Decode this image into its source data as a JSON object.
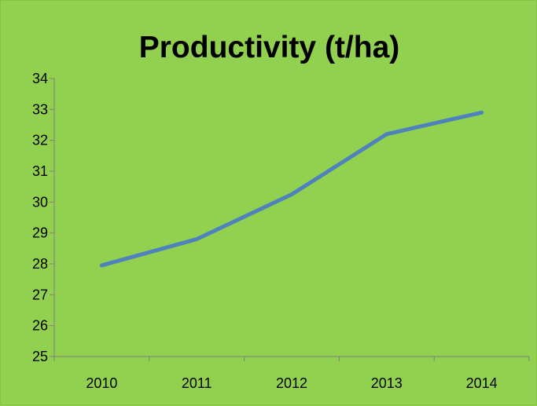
{
  "chart_data": {
    "type": "line",
    "title": "Productivity (t/ha)",
    "categories": [
      "2010",
      "2011",
      "2012",
      "2013",
      "2014"
    ],
    "series": [
      {
        "values": [
          27.95,
          28.8,
          30.25,
          32.2,
          32.9
        ],
        "color": "#4f81bd"
      }
    ],
    "ylim": [
      25,
      34
    ],
    "yticks": [
      25,
      26,
      27,
      28,
      29,
      30,
      31,
      32,
      33,
      34
    ],
    "grid": false,
    "legend": "none"
  }
}
